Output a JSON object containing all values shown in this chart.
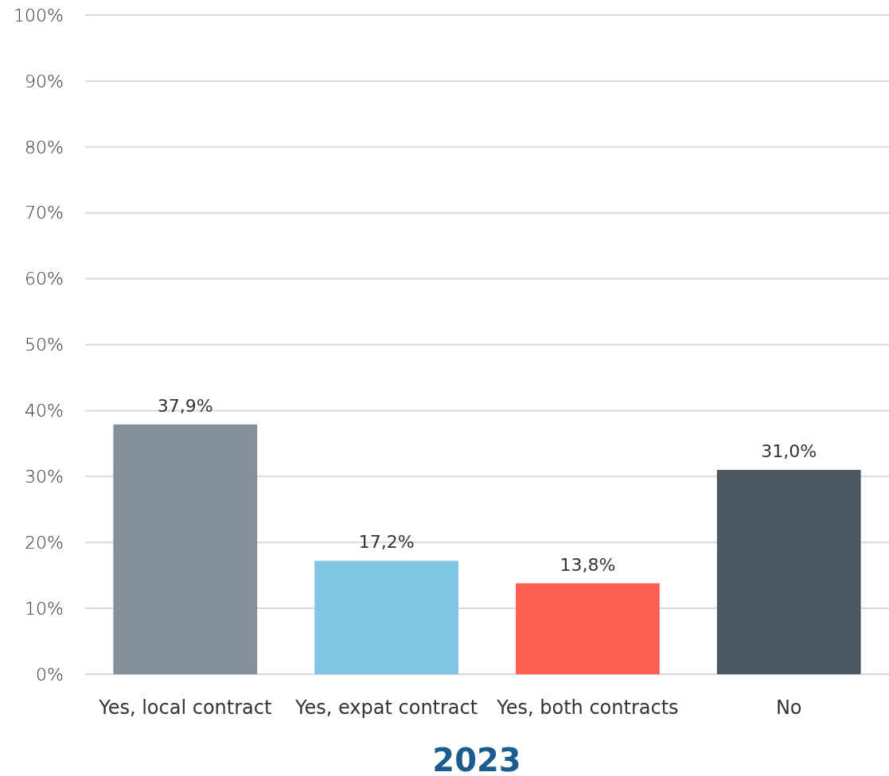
{
  "chart_data": {
    "type": "bar",
    "title": "2023",
    "categories": [
      "Yes, local contract",
      "Yes, expat contract",
      "Yes, both contracts",
      "No"
    ],
    "values": [
      37.9,
      17.2,
      13.8,
      31.0
    ],
    "colors": [
      "#848f9a",
      "#80c6e4",
      "#ff5f52",
      "#4d5761"
    ],
    "value_labels": [
      "37,9%",
      "17,2%",
      "13,8%",
      "31,0%"
    ],
    "ylim": [
      0,
      100
    ],
    "yticks": [
      {
        "value": 0,
        "label": "0%"
      },
      {
        "value": 10,
        "label": "10%"
      },
      {
        "value": 20,
        "label": "20%"
      },
      {
        "value": 30,
        "label": "30%"
      },
      {
        "value": 40,
        "label": "40%"
      },
      {
        "value": 50,
        "label": "50%"
      },
      {
        "value": 60,
        "label": "60%"
      },
      {
        "value": 70,
        "label": "70%"
      },
      {
        "value": 80,
        "label": "80%"
      },
      {
        "value": 90,
        "label": "90%"
      },
      {
        "value": 100,
        "label": "100%"
      }
    ],
    "grid": "y"
  }
}
